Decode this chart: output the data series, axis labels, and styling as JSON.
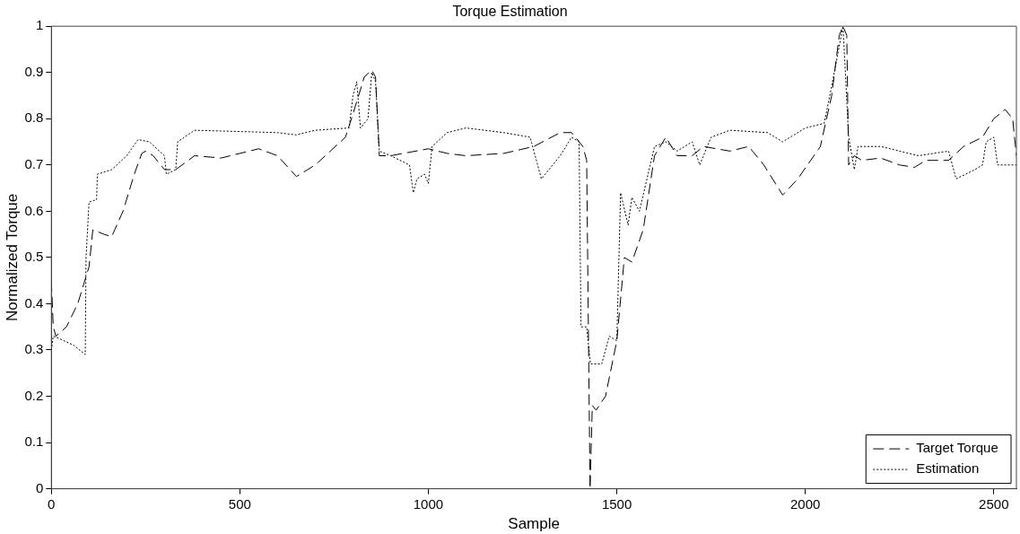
{
  "chart_data": {
    "type": "line",
    "title": "Torque Estimation",
    "xlabel": "Sample",
    "ylabel": "Normalized Torque",
    "xlim": [
      0,
      2560
    ],
    "xticks": [
      0,
      500,
      1000,
      1500,
      2000,
      2500
    ],
    "ylim": [
      0,
      1
    ],
    "yticks": [
      0,
      0.1,
      0.2,
      0.3,
      0.4,
      0.5,
      0.6,
      0.7,
      0.8,
      0.9,
      1
    ],
    "grid": false,
    "legend": "bottom right",
    "marker": "none",
    "series": [
      {
        "name": "Target Torque",
        "color": "#000000",
        "line_style": "dashed",
        "x": [
          0,
          5,
          12,
          40,
          70,
          100,
          110,
          140,
          160,
          190,
          220,
          240,
          250,
          270,
          300,
          330,
          380,
          450,
          550,
          600,
          650,
          700,
          780,
          800,
          830,
          850,
          860,
          870,
          900,
          1000,
          1050,
          1100,
          1200,
          1280,
          1350,
          1380,
          1410,
          1420,
          1429,
          1435,
          1445,
          1470,
          1500,
          1520,
          1540,
          1570,
          1600,
          1630,
          1660,
          1700,
          1730,
          1800,
          1850,
          1890,
          1940,
          1980,
          2040,
          2070,
          2090,
          2100,
          2110,
          2115,
          2130,
          2150,
          2200,
          2250,
          2290,
          2320,
          2380,
          2420,
          2470,
          2500,
          2530,
          2550,
          2560
        ],
        "values": [
          0.45,
          0.35,
          0.33,
          0.35,
          0.4,
          0.48,
          0.56,
          0.55,
          0.545,
          0.6,
          0.68,
          0.725,
          0.73,
          0.72,
          0.69,
          0.69,
          0.72,
          0.715,
          0.735,
          0.72,
          0.675,
          0.7,
          0.76,
          0.81,
          0.89,
          0.905,
          0.89,
          0.72,
          0.72,
          0.735,
          0.725,
          0.72,
          0.725,
          0.74,
          0.77,
          0.77,
          0.74,
          0.71,
          0,
          0.18,
          0.17,
          0.2,
          0.32,
          0.5,
          0.49,
          0.56,
          0.72,
          0.76,
          0.72,
          0.72,
          0.74,
          0.73,
          0.74,
          0.7,
          0.635,
          0.67,
          0.74,
          0.85,
          0.98,
          1,
          0.98,
          0.7,
          0.72,
          0.71,
          0.715,
          0.7,
          0.695,
          0.71,
          0.71,
          0.74,
          0.76,
          0.8,
          0.82,
          0.8,
          0.72
        ]
      },
      {
        "name": "Estimation",
        "color": "#000000",
        "line_style": "dotted",
        "x": [
          0,
          5,
          20,
          60,
          90,
          92,
          100,
          120,
          122,
          160,
          200,
          230,
          260,
          300,
          305,
          330,
          335,
          380,
          600,
          650,
          700,
          790,
          800,
          810,
          820,
          840,
          850,
          860,
          870,
          900,
          950,
          960,
          970,
          990,
          1000,
          1010,
          1050,
          1100,
          1200,
          1270,
          1300,
          1350,
          1380,
          1400,
          1405,
          1420,
          1430,
          1460,
          1480,
          1500,
          1510,
          1530,
          1540,
          1560,
          1600,
          1630,
          1660,
          1700,
          1720,
          1750,
          1800,
          1900,
          1940,
          2000,
          2050,
          2070,
          2100,
          2115,
          2130,
          2140,
          2200,
          2300,
          2380,
          2400,
          2450,
          2470,
          2480,
          2500,
          2510,
          2560
        ],
        "values": [
          0.3,
          0.33,
          0.325,
          0.31,
          0.29,
          0.5,
          0.62,
          0.625,
          0.68,
          0.69,
          0.72,
          0.755,
          0.75,
          0.72,
          0.68,
          0.69,
          0.75,
          0.775,
          0.77,
          0.765,
          0.775,
          0.78,
          0.85,
          0.88,
          0.78,
          0.8,
          0.9,
          0.88,
          0.73,
          0.72,
          0.7,
          0.64,
          0.67,
          0.68,
          0.66,
          0.74,
          0.77,
          0.78,
          0.77,
          0.76,
          0.67,
          0.72,
          0.76,
          0.75,
          0.35,
          0.35,
          0.27,
          0.27,
          0.33,
          0.32,
          0.64,
          0.57,
          0.63,
          0.6,
          0.74,
          0.75,
          0.73,
          0.75,
          0.7,
          0.76,
          0.775,
          0.77,
          0.75,
          0.78,
          0.79,
          0.87,
          1,
          0.76,
          0.69,
          0.74,
          0.74,
          0.72,
          0.73,
          0.67,
          0.69,
          0.7,
          0.75,
          0.76,
          0.7,
          0.7
        ]
      }
    ]
  }
}
